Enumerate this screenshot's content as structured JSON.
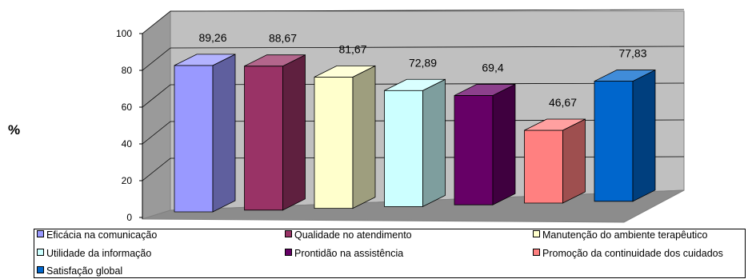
{
  "chart_data": {
    "type": "bar",
    "ylabel": "%",
    "ylim": [
      0,
      100
    ],
    "yticks": [
      "0",
      "20",
      "40",
      "60",
      "80",
      "100"
    ],
    "grid": true,
    "legend_position": "bottom",
    "series": [
      {
        "name": "Eficácia na comunicação",
        "value": 89.26,
        "label": "89,26",
        "color": "#9999ff"
      },
      {
        "name": "Qualidade no atendimento",
        "value": 88.67,
        "label": "88,67",
        "color": "#993366"
      },
      {
        "name": "Manutenção do ambiente terapêutico",
        "value": 81.67,
        "label": "81,67",
        "color": "#ffffcc"
      },
      {
        "name": "Utilidade da informação",
        "value": 72.89,
        "label": "72,89",
        "color": "#ccffff"
      },
      {
        "name": "Prontidão na assistência",
        "value": 69.4,
        "label": "69,4",
        "color": "#660066"
      },
      {
        "name": "Promoção da continuidade dos cuidados",
        "value": 46.67,
        "label": "46,67",
        "color": "#ff8080"
      },
      {
        "name": "Satisfação global",
        "value": 77.83,
        "label": "77,83",
        "color": "#0066cc"
      }
    ]
  }
}
